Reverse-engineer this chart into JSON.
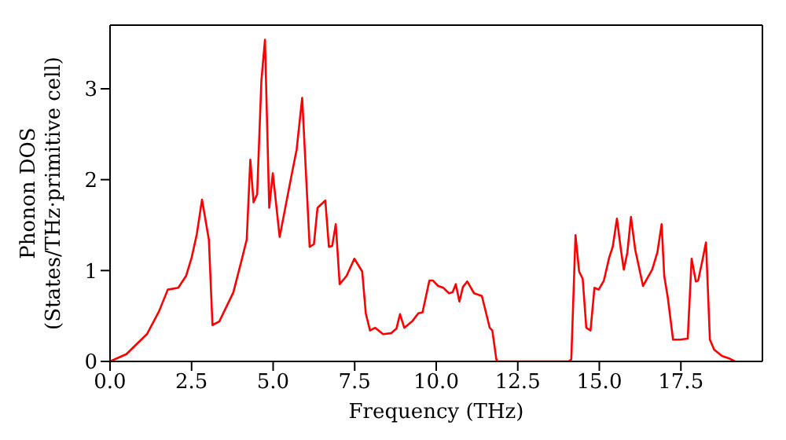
{
  "chart_data": {
    "type": "line",
    "xlabel": "Frequency (THz)",
    "ylabel": "Phonon DOS\n(States/THz·primitive cell)",
    "xlim": [
      0,
      20
    ],
    "ylim": [
      0,
      3.7
    ],
    "xticks": [
      {
        "value": 0,
        "label": "0.0"
      },
      {
        "value": 2.5,
        "label": "2.5"
      },
      {
        "value": 5,
        "label": "5.0"
      },
      {
        "value": 7.5,
        "label": "7.5"
      },
      {
        "value": 10,
        "label": "10.0"
      },
      {
        "value": 12.5,
        "label": "12.5"
      },
      {
        "value": 15,
        "label": "15.0"
      },
      {
        "value": 17.5,
        "label": "17.5"
      }
    ],
    "yticks": [
      0,
      1,
      2,
      3
    ],
    "legend": false,
    "marker": "none",
    "line_style": "solid",
    "series": [
      {
        "color": "#ff0000",
        "x": [
          0,
          0.5,
          1.13,
          1.5,
          1.77,
          2.09,
          2.33,
          2.5,
          2.66,
          2.82,
          3.03,
          3.14,
          3.35,
          3.78,
          4.03,
          4.19,
          4.3,
          4.4,
          4.51,
          4.64,
          4.75,
          4.88,
          4.99,
          5.2,
          5.56,
          5.72,
          5.89,
          6.12,
          6.25,
          6.36,
          6.6,
          6.71,
          6.81,
          6.92,
          7.04,
          7.25,
          7.49,
          7.73,
          7.84,
          7.97,
          8.13,
          8.37,
          8.61,
          8.78,
          8.89,
          9.02,
          9.26,
          9.45,
          9.58,
          9.79,
          9.9,
          10.06,
          10.22,
          10.39,
          10.5,
          10.6,
          10.71,
          10.82,
          10.95,
          11.16,
          11.4,
          11.64,
          11.72,
          11.84,
          11.87,
          14.05,
          14.14,
          14.27,
          14.38,
          14.49,
          14.6,
          14.73,
          14.85,
          14.98,
          15.14,
          15.3,
          15.41,
          15.54,
          15.65,
          15.75,
          15.86,
          15.97,
          16.1,
          16.34,
          16.62,
          16.78,
          16.91,
          16.99,
          17.1,
          17.26,
          17.47,
          17.71,
          17.83,
          17.96,
          18.03,
          18.16,
          18.27,
          18.39,
          18.52,
          18.76,
          19.0,
          19.16
        ],
        "values": [
          0,
          0.08,
          0.3,
          0.55,
          0.79,
          0.81,
          0.94,
          1.14,
          1.4,
          1.78,
          1.34,
          0.4,
          0.44,
          0.76,
          1.11,
          1.34,
          2.22,
          1.75,
          1.84,
          3.09,
          3.54,
          1.69,
          2.07,
          1.37,
          2.04,
          2.33,
          2.9,
          1.26,
          1.29,
          1.69,
          1.77,
          1.26,
          1.27,
          1.51,
          0.85,
          0.94,
          1.13,
          0.99,
          0.53,
          0.34,
          0.37,
          0.3,
          0.31,
          0.36,
          0.52,
          0.37,
          0.44,
          0.53,
          0.54,
          0.89,
          0.89,
          0.83,
          0.81,
          0.75,
          0.76,
          0.85,
          0.66,
          0.82,
          0.88,
          0.75,
          0.72,
          0.37,
          0.34,
          0.03,
          0,
          0,
          0.02,
          1.39,
          0.99,
          0.91,
          0.37,
          0.34,
          0.81,
          0.79,
          0.89,
          1.14,
          1.26,
          1.57,
          1.26,
          1.01,
          1.2,
          1.59,
          1.23,
          0.83,
          1.01,
          1.2,
          1.51,
          0.94,
          0.7,
          0.24,
          0.24,
          0.25,
          1.13,
          0.88,
          0.89,
          1.11,
          1.31,
          0.24,
          0.13,
          0.06,
          0.03,
          0
        ]
      }
    ]
  }
}
